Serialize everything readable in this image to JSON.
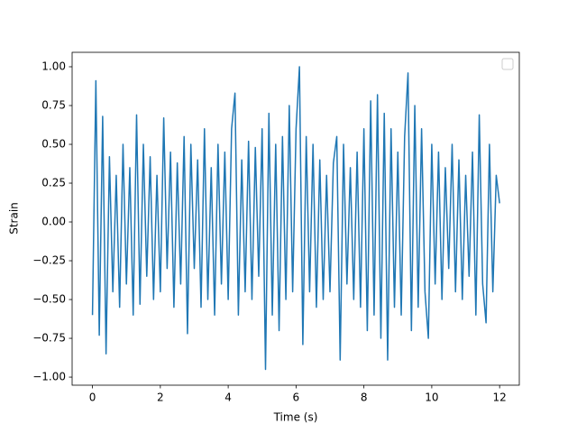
{
  "chart_data": {
    "type": "line",
    "xlabel": "Time (s)",
    "ylabel": "Strain",
    "color": "#1f77b4",
    "legend": "upper right",
    "xlim": [
      -0.6,
      12.58
    ],
    "ylim": [
      -1.052,
      1.093
    ],
    "xticks": [
      0,
      2,
      4,
      6,
      8,
      10,
      12
    ],
    "yticks": [
      {
        "value": -1,
        "label": "−1.00"
      },
      {
        "value": -0.75,
        "label": "−0.75"
      },
      {
        "value": -0.5,
        "label": "−0.50"
      },
      {
        "value": -0.25,
        "label": "−0.25"
      },
      {
        "value": 0,
        "label": "0.00"
      },
      {
        "value": 0.25,
        "label": "0.25"
      },
      {
        "value": 0.5,
        "label": "0.50"
      },
      {
        "value": 0.75,
        "label": "0.75"
      },
      {
        "value": 1,
        "label": "1.00"
      }
    ],
    "x": [
      0.0,
      0.1,
      0.2,
      0.3,
      0.4,
      0.5,
      0.6,
      0.7,
      0.8,
      0.9,
      1.0,
      1.1,
      1.2,
      1.3,
      1.4,
      1.5,
      1.6,
      1.7,
      1.8,
      1.9,
      2.0,
      2.1,
      2.2,
      2.3,
      2.4,
      2.5,
      2.6,
      2.7,
      2.8,
      2.9,
      3.0,
      3.1,
      3.2,
      3.3,
      3.4,
      3.5,
      3.6,
      3.7,
      3.8,
      3.9,
      4.0,
      4.1,
      4.2,
      4.3,
      4.4,
      4.5,
      4.6,
      4.7,
      4.8,
      4.9,
      5.0,
      5.1,
      5.2,
      5.3,
      5.4,
      5.5,
      5.6,
      5.7,
      5.8,
      5.9,
      6.0,
      6.1,
      6.2,
      6.3,
      6.4,
      6.5,
      6.6,
      6.7,
      6.8,
      6.9,
      7.0,
      7.1,
      7.2,
      7.3,
      7.4,
      7.5,
      7.6,
      7.7,
      7.8,
      7.9,
      8.0,
      8.1,
      8.2,
      8.3,
      8.4,
      8.5,
      8.6,
      8.7,
      8.8,
      8.9,
      9.0,
      9.1,
      9.2,
      9.3,
      9.4,
      9.5,
      9.6,
      9.7,
      9.8,
      9.9,
      10.0,
      10.1,
      10.2,
      10.3,
      10.4,
      10.5,
      10.6,
      10.7,
      10.8,
      10.9,
      11.0,
      11.1,
      11.2,
      11.3,
      11.4,
      11.5,
      11.6,
      11.7,
      11.8,
      11.9,
      12.0
    ],
    "values": [
      -0.6,
      0.91,
      -0.73,
      0.68,
      -0.85,
      0.42,
      -0.45,
      0.3,
      -0.55,
      0.5,
      -0.4,
      0.35,
      -0.6,
      0.69,
      -0.53,
      0.5,
      -0.35,
      0.42,
      -0.5,
      0.3,
      -0.45,
      0.67,
      -0.3,
      0.45,
      -0.55,
      0.38,
      -0.4,
      0.55,
      -0.72,
      0.5,
      -0.3,
      0.4,
      -0.55,
      0.6,
      -0.5,
      0.35,
      -0.6,
      0.5,
      -0.4,
      0.45,
      -0.5,
      0.6,
      0.83,
      -0.6,
      0.4,
      -0.45,
      0.52,
      -0.5,
      0.48,
      -0.35,
      0.6,
      -0.95,
      0.7,
      -0.6,
      0.5,
      -0.7,
      0.55,
      -0.5,
      0.75,
      -0.45,
      0.6,
      1.0,
      -0.79,
      0.55,
      -0.45,
      0.5,
      -0.55,
      0.4,
      -0.5,
      0.3,
      -0.45,
      0.38,
      0.55,
      -0.89,
      0.5,
      -0.4,
      0.35,
      -0.5,
      0.45,
      -0.55,
      0.6,
      -0.7,
      0.78,
      -0.6,
      0.82,
      -0.75,
      0.7,
      -0.89,
      0.6,
      -0.55,
      0.45,
      -0.6,
      0.55,
      0.96,
      -0.7,
      0.75,
      -0.55,
      0.6,
      -0.45,
      -0.75,
      0.5,
      -0.4,
      0.45,
      -0.5,
      0.35,
      -0.3,
      0.5,
      -0.45,
      0.4,
      -0.5,
      0.3,
      -0.35,
      0.45,
      -0.6,
      0.69,
      -0.4,
      -0.65,
      0.5,
      -0.45,
      0.3,
      0.12
    ]
  }
}
